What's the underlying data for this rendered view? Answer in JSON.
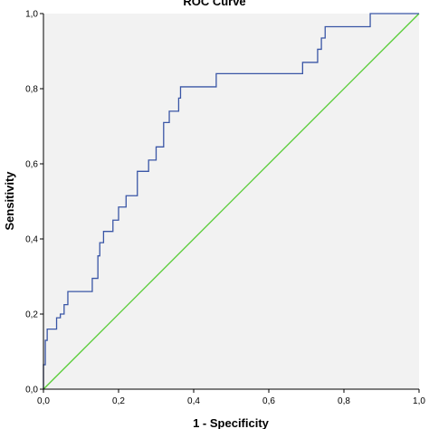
{
  "chart_data": {
    "type": "line",
    "title": "ROC Curve",
    "xlabel": "1 - Specificity",
    "ylabel": "Sensitivity",
    "xlim": [
      0,
      1
    ],
    "ylim": [
      0,
      1
    ],
    "x_ticks": [
      "0,0",
      "0,2",
      "0,4",
      "0,6",
      "0,8",
      "1,0"
    ],
    "y_ticks": [
      "0,0",
      "0,2",
      "0,4",
      "0,6",
      "0,8",
      "1,0"
    ],
    "grid": false,
    "legend": "none",
    "colors": {
      "plot_background": "#f2f2f2",
      "roc_curve": "#3a56a6",
      "reference_line": "#55cc33"
    },
    "series": [
      {
        "x": [
          0.0,
          0.0,
          0.005,
          0.005,
          0.01,
          0.01,
          0.035,
          0.035,
          0.045,
          0.045,
          0.055,
          0.055,
          0.065,
          0.065,
          0.13,
          0.13,
          0.145,
          0.145,
          0.15,
          0.15,
          0.16,
          0.16,
          0.185,
          0.185,
          0.2,
          0.2,
          0.22,
          0.22,
          0.25,
          0.25,
          0.28,
          0.28,
          0.3,
          0.3,
          0.32,
          0.32,
          0.335,
          0.335,
          0.36,
          0.36,
          0.365,
          0.365,
          0.375,
          0.375,
          0.46,
          0.46,
          0.69,
          0.69,
          0.73,
          0.73,
          0.74,
          0.74,
          0.75,
          0.75,
          0.765,
          0.765,
          0.87,
          0.87,
          1.0
        ],
        "y": [
          0.0,
          0.065,
          0.065,
          0.13,
          0.13,
          0.16,
          0.16,
          0.19,
          0.19,
          0.2,
          0.2,
          0.225,
          0.225,
          0.26,
          0.26,
          0.295,
          0.295,
          0.355,
          0.355,
          0.39,
          0.39,
          0.42,
          0.42,
          0.45,
          0.45,
          0.485,
          0.485,
          0.515,
          0.515,
          0.58,
          0.58,
          0.61,
          0.61,
          0.645,
          0.645,
          0.71,
          0.71,
          0.74,
          0.74,
          0.775,
          0.775,
          0.805,
          0.805,
          0.805,
          0.805,
          0.84,
          0.84,
          0.87,
          0.87,
          0.905,
          0.905,
          0.935,
          0.935,
          0.965,
          0.965,
          0.965,
          0.965,
          1.0,
          1.0
        ]
      },
      {
        "x": [
          0,
          1
        ],
        "y": [
          0,
          1
        ]
      }
    ]
  }
}
